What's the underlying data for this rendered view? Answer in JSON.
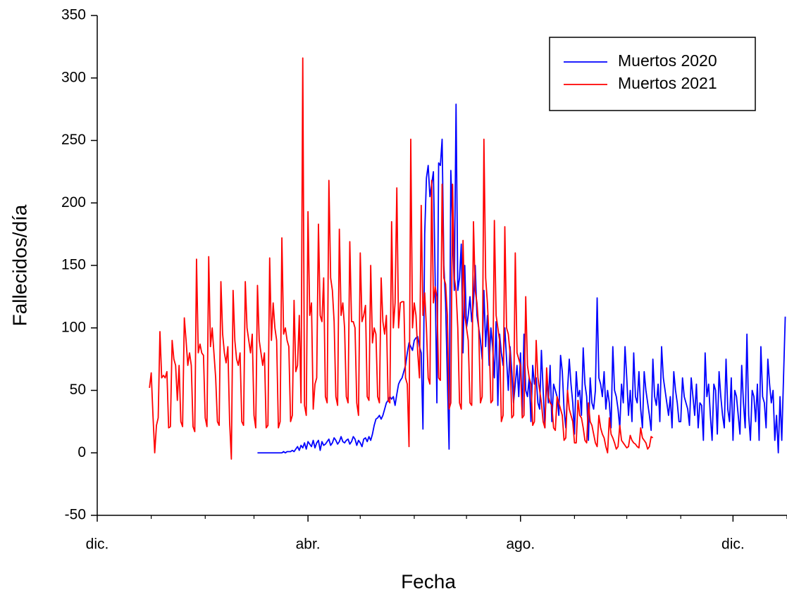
{
  "chart_data": {
    "type": "line",
    "x_label": "Fecha",
    "y_label": "Fallecidos/día",
    "legend": "upper right",
    "xlim": [
      0,
      396
    ],
    "ylim": [
      -50,
      350
    ],
    "yticks": [
      -50,
      0,
      50,
      100,
      150,
      200,
      250,
      300,
      350
    ],
    "xticks": [
      {
        "value": 0,
        "label": "dic."
      },
      {
        "value": 121,
        "label": "abr."
      },
      {
        "value": 243,
        "label": "ago."
      },
      {
        "value": 365,
        "label": "dic."
      }
    ],
    "xminorticks": [
      31,
      62,
      90,
      151,
      182,
      212,
      274,
      304,
      335,
      396
    ],
    "x": [
      0,
      1,
      2,
      3,
      4,
      5,
      6,
      7,
      8,
      9,
      10,
      11,
      12,
      13,
      14,
      15,
      16,
      17,
      18,
      19,
      20,
      21,
      22,
      23,
      24,
      25,
      26,
      27,
      28,
      29,
      30,
      31,
      32,
      33,
      34,
      35,
      36,
      37,
      38,
      39,
      40,
      41,
      42,
      43,
      44,
      45,
      46,
      47,
      48,
      49,
      50,
      51,
      52,
      53,
      54,
      55,
      56,
      57,
      58,
      59,
      60,
      61,
      62,
      63,
      64,
      65,
      66,
      67,
      68,
      69,
      70,
      71,
      72,
      73,
      74,
      75,
      76,
      77,
      78,
      79,
      80,
      81,
      82,
      83,
      84,
      85,
      86,
      87,
      88,
      89,
      90,
      91,
      92,
      93,
      94,
      95,
      96,
      97,
      98,
      99,
      100,
      101,
      102,
      103,
      104,
      105,
      106,
      107,
      108,
      109,
      110,
      111,
      112,
      113,
      114,
      115,
      116,
      117,
      118,
      119,
      120,
      121,
      122,
      123,
      124,
      125,
      126,
      127,
      128,
      129,
      130,
      131,
      132,
      133,
      134,
      135,
      136,
      137,
      138,
      139,
      140,
      141,
      142,
      143,
      144,
      145,
      146,
      147,
      148,
      149,
      150,
      151,
      152,
      153,
      154,
      155,
      156,
      157,
      158,
      159,
      160,
      161,
      162,
      163,
      164,
      165,
      166,
      167,
      168,
      169,
      170,
      171,
      172,
      173,
      174,
      175,
      176,
      177,
      178,
      179,
      180,
      181,
      182,
      183,
      184,
      185,
      186,
      187,
      188,
      189,
      190,
      191,
      192,
      193,
      194,
      195,
      196,
      197,
      198,
      199,
      200,
      201,
      202,
      203,
      204,
      205,
      206,
      207,
      208,
      209,
      210,
      211,
      212,
      213,
      214,
      215,
      216,
      217,
      218,
      219,
      220,
      221,
      222,
      223,
      224,
      225,
      226,
      227,
      228,
      229,
      230,
      231,
      232,
      233,
      234,
      235,
      236,
      237,
      238,
      239,
      240,
      241,
      242,
      243,
      244,
      245,
      246,
      247,
      248,
      249,
      250,
      251,
      252,
      253,
      254,
      255,
      256,
      257,
      258,
      259,
      260,
      261,
      262,
      263,
      264,
      265,
      266,
      267,
      268,
      269,
      270,
      271,
      272,
      273,
      274,
      275,
      276,
      277,
      278,
      279,
      280,
      281,
      282,
      283,
      284,
      285,
      286,
      287,
      288,
      289,
      290,
      291,
      292,
      293,
      294,
      295,
      296,
      297,
      298,
      299,
      300,
      301,
      302,
      303,
      304,
      305,
      306,
      307,
      308,
      309,
      310,
      311,
      312,
      313,
      314,
      315,
      316,
      317,
      318,
      319,
      320,
      321,
      322,
      323,
      324,
      325,
      326,
      327,
      328,
      329,
      330,
      331,
      332,
      333,
      334,
      335,
      336,
      337,
      338,
      339,
      340,
      341,
      342,
      343,
      344,
      345,
      346,
      347,
      348,
      349,
      350,
      351,
      352,
      353,
      354,
      355,
      356,
      357,
      358,
      359,
      360,
      361,
      362,
      363,
      364,
      365,
      366,
      367,
      368,
      369,
      370,
      371,
      372,
      373,
      374,
      375,
      376,
      377,
      378,
      379,
      380,
      381,
      382,
      383,
      384,
      385,
      386,
      387,
      388,
      389,
      390,
      391,
      392,
      393,
      394,
      395,
      396
    ],
    "series": [
      {
        "name": "Muertos 2020",
        "color": "#0000ff",
        "values": [
          null,
          null,
          null,
          null,
          null,
          null,
          null,
          null,
          null,
          null,
          null,
          null,
          null,
          null,
          null,
          null,
          null,
          null,
          null,
          null,
          null,
          null,
          null,
          null,
          null,
          null,
          null,
          null,
          null,
          null,
          null,
          null,
          null,
          null,
          null,
          null,
          null,
          null,
          null,
          null,
          null,
          null,
          null,
          null,
          null,
          null,
          null,
          null,
          null,
          null,
          null,
          null,
          null,
          null,
          null,
          null,
          null,
          null,
          null,
          null,
          null,
          null,
          null,
          null,
          null,
          null,
          null,
          null,
          null,
          null,
          null,
          null,
          null,
          null,
          null,
          null,
          null,
          null,
          null,
          null,
          null,
          null,
          null,
          null,
          null,
          null,
          null,
          null,
          null,
          null,
          null,
          null,
          0,
          0,
          0,
          0,
          0,
          0,
          0,
          0,
          0,
          0,
          0,
          0,
          0,
          0,
          0,
          1,
          0,
          1,
          1,
          1,
          2,
          1,
          3,
          5,
          2,
          6,
          4,
          8,
          3,
          9,
          7,
          5,
          10,
          4,
          8,
          10,
          2,
          9,
          6,
          7,
          9,
          11,
          6,
          8,
          12,
          10,
          7,
          9,
          13,
          9,
          8,
          10,
          11,
          7,
          9,
          13,
          11,
          6,
          10,
          8,
          5,
          11,
          12,
          9,
          13,
          10,
          15,
          22,
          27,
          28,
          30,
          27,
          30,
          35,
          40,
          42,
          45,
          43,
          45,
          38,
          47,
          55,
          58,
          60,
          65,
          70,
          80,
          88,
          85,
          82,
          90,
          92,
          93,
          85,
          80,
          19,
          175,
          220,
          230,
          205,
          215,
          225,
          140,
          40,
          232,
          230,
          251,
          150,
          120,
          60,
          3,
          226,
          180,
          130,
          279,
          130,
          140,
          167,
          80,
          150,
          100,
          110,
          125,
          105,
          120,
          150,
          110,
          100,
          90,
          75,
          130,
          85,
          110,
          70,
          100,
          85,
          60,
          105,
          38,
          95,
          80,
          70,
          100,
          75,
          50,
          85,
          65,
          40,
          55,
          70,
          45,
          80,
          30,
          95,
          50,
          45,
          60,
          25,
          70,
          55,
          60,
          40,
          35,
          82,
          50,
          20,
          60,
          40,
          70,
          25,
          55,
          50,
          45,
          30,
          78,
          65,
          35,
          20,
          50,
          75,
          55,
          40,
          15,
          65,
          45,
          50,
          30,
          84,
          55,
          45,
          10,
          60,
          40,
          35,
          50,
          124,
          60,
          55,
          45,
          65,
          35,
          50,
          40,
          20,
          85,
          50,
          45,
          35,
          20,
          55,
          40,
          85,
          60,
          30,
          50,
          25,
          80,
          45,
          40,
          65,
          35,
          20,
          65,
          50,
          40,
          30,
          18,
          75,
          45,
          38,
          55,
          25,
          85,
          60,
          50,
          40,
          30,
          45,
          20,
          65,
          50,
          40,
          25,
          25,
          60,
          45,
          40,
          35,
          22,
          60,
          45,
          30,
          55,
          20,
          40,
          38,
          10,
          80,
          45,
          55,
          30,
          10,
          55,
          50,
          15,
          65,
          45,
          30,
          20,
          75,
          35,
          25,
          60,
          10,
          50,
          45,
          30,
          15,
          70,
          40,
          20,
          95,
          30,
          10,
          50,
          45,
          25,
          55,
          10,
          85,
          45,
          40,
          20,
          75,
          55,
          40,
          50,
          10,
          30,
          0,
          45,
          10,
          60,
          109,
          null
        ]
      },
      {
        "name": "Muertos 2021",
        "color": "#ff0000",
        "values": [
          null,
          null,
          null,
          null,
          null,
          null,
          null,
          null,
          null,
          null,
          null,
          null,
          null,
          null,
          null,
          null,
          null,
          null,
          null,
          null,
          null,
          null,
          null,
          null,
          null,
          null,
          null,
          null,
          null,
          null,
          52,
          64,
          30,
          0,
          22,
          28,
          97,
          60,
          62,
          60,
          65,
          20,
          21,
          90,
          75,
          70,
          42,
          70,
          25,
          21,
          108,
          90,
          70,
          80,
          70,
          21,
          17,
          155,
          80,
          87,
          80,
          78,
          28,
          21,
          157,
          85,
          100,
          80,
          60,
          25,
          22,
          137,
          95,
          80,
          72,
          85,
          25,
          -5,
          130,
          90,
          75,
          70,
          80,
          25,
          22,
          137,
          100,
          90,
          80,
          95,
          30,
          20,
          134,
          90,
          80,
          70,
          80,
          20,
          22,
          156,
          90,
          120,
          100,
          90,
          20,
          25,
          172,
          95,
          100,
          90,
          85,
          25,
          30,
          122,
          65,
          70,
          110,
          40,
          316,
          38,
          30,
          193,
          110,
          120,
          35,
          55,
          60,
          183,
          110,
          105,
          140,
          45,
          40,
          218,
          140,
          130,
          105,
          45,
          38,
          179,
          110,
          120,
          100,
          45,
          40,
          169,
          105,
          105,
          100,
          40,
          30,
          160,
          105,
          110,
          118,
          45,
          42,
          150,
          88,
          100,
          95,
          45,
          40,
          140,
          105,
          95,
          110,
          42,
          40,
          185,
          100,
          120,
          212,
          100,
          120,
          121,
          121,
          60,
          55,
          5,
          251,
          100,
          120,
          110,
          80,
          60,
          198,
          110,
          128,
          100,
          60,
          55,
          218,
          120,
          133,
          125,
          60,
          58,
          215,
          140,
          135,
          110,
          35,
          40,
          215,
          140,
          130,
          100,
          40,
          35,
          170,
          110,
          100,
          90,
          40,
          38,
          185,
          130,
          120,
          100,
          40,
          45,
          251,
          140,
          120,
          90,
          40,
          42,
          186,
          110,
          100,
          90,
          25,
          30,
          181,
          100,
          95,
          80,
          28,
          30,
          160,
          80,
          75,
          70,
          28,
          30,
          125,
          70,
          60,
          55,
          22,
          25,
          90,
          60,
          50,
          40,
          25,
          20,
          68,
          45,
          40,
          38,
          20,
          18,
          45,
          40,
          35,
          30,
          10,
          12,
          50,
          35,
          30,
          25,
          8,
          8,
          42,
          30,
          28,
          20,
          10,
          8,
          40,
          25,
          22,
          15,
          8,
          5,
          30,
          20,
          15,
          12,
          5,
          0,
          28,
          15,
          12,
          8,
          3,
          5,
          22,
          10,
          8,
          6,
          4,
          5,
          14,
          10,
          8,
          7,
          5,
          4,
          20,
          12,
          10,
          8,
          3,
          5,
          13,
          12,
          null,
          null,
          null,
          null,
          null,
          null,
          null,
          null,
          null,
          null,
          null,
          null,
          null,
          null,
          null,
          null,
          null,
          null,
          null,
          null,
          null,
          null,
          null,
          null,
          null,
          null,
          null,
          null,
          null,
          null,
          null,
          null,
          null,
          null,
          null,
          null,
          null,
          null,
          null,
          null,
          null,
          null,
          null,
          null,
          null,
          null,
          null,
          null,
          null,
          null,
          null,
          null,
          null,
          null,
          null,
          null,
          null,
          null,
          null,
          null,
          null,
          null,
          null,
          null,
          null,
          null,
          null,
          null,
          null,
          null,
          null,
          null,
          null,
          null,
          null,
          null,
          null
        ]
      }
    ]
  }
}
